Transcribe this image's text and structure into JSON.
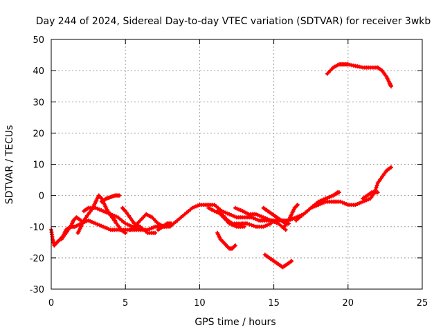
{
  "chart_data": {
    "type": "scatter",
    "title": "Day 244 of 2024, Sidereal Day-to-day VTEC variation (SDTVAR) for receiver 3wkb",
    "xlabel": "GPS time / hours",
    "ylabel": "SDTVAR / TECUs",
    "xlim": [
      0,
      25
    ],
    "ylim": [
      -30,
      50
    ],
    "xticks": [
      0,
      5,
      10,
      15,
      20,
      25
    ],
    "yticks": [
      -30,
      -20,
      -10,
      0,
      10,
      20,
      30,
      40,
      50
    ],
    "grid": true,
    "marker": "plus",
    "series": [
      {
        "name": "main-band",
        "color": "#ff0000",
        "points": [
          [
            0.0,
            -11
          ],
          [
            0.1,
            -14
          ],
          [
            0.2,
            -16
          ],
          [
            0.4,
            -15
          ],
          [
            0.6,
            -14
          ],
          [
            0.8,
            -13
          ],
          [
            1.0,
            -11
          ],
          [
            1.3,
            -10
          ],
          [
            1.6,
            -10
          ],
          [
            2.0,
            -9
          ],
          [
            2.5,
            -8
          ],
          [
            3.0,
            -9
          ],
          [
            3.5,
            -10
          ],
          [
            4.0,
            -11
          ],
          [
            4.5,
            -11
          ],
          [
            5.0,
            -11
          ],
          [
            5.5,
            -11
          ],
          [
            6.0,
            -11
          ],
          [
            6.5,
            -11
          ],
          [
            7.0,
            -10
          ],
          [
            7.5,
            -10
          ],
          [
            8.0,
            -10
          ],
          [
            8.5,
            -8
          ],
          [
            9.0,
            -6
          ],
          [
            9.5,
            -4
          ],
          [
            10.0,
            -3
          ],
          [
            10.5,
            -3
          ],
          [
            11.0,
            -3
          ],
          [
            11.5,
            -5
          ],
          [
            12.0,
            -6
          ],
          [
            12.5,
            -7
          ],
          [
            13.0,
            -7
          ],
          [
            13.5,
            -7
          ],
          [
            14.0,
            -8
          ],
          [
            14.5,
            -8
          ],
          [
            15.0,
            -8
          ],
          [
            15.5,
            -8
          ],
          [
            16.0,
            -8
          ],
          [
            16.5,
            -7
          ],
          [
            17.0,
            -6
          ],
          [
            17.5,
            -4
          ],
          [
            18.0,
            -3
          ],
          [
            18.5,
            -2
          ],
          [
            19.0,
            -2
          ],
          [
            19.5,
            -2
          ],
          [
            20.0,
            -3
          ],
          [
            20.5,
            -3
          ],
          [
            21.0,
            -2
          ],
          [
            21.5,
            -1
          ],
          [
            21.8,
            1
          ],
          [
            22.0,
            4
          ],
          [
            22.3,
            6
          ],
          [
            22.6,
            8
          ],
          [
            22.9,
            9
          ]
        ]
      },
      {
        "name": "branch-1",
        "color": "#ff0000",
        "points": [
          [
            0.7,
            -14
          ],
          [
            1.0,
            -12
          ],
          [
            1.3,
            -10
          ],
          [
            1.5,
            -8
          ],
          [
            1.7,
            -7
          ],
          [
            2.0,
            -8
          ]
        ]
      },
      {
        "name": "branch-2",
        "color": "#ff0000",
        "points": [
          [
            1.8,
            -12
          ],
          [
            2.0,
            -10
          ],
          [
            2.2,
            -8
          ],
          [
            2.5,
            -6
          ],
          [
            2.8,
            -4
          ],
          [
            3.0,
            -2
          ],
          [
            3.2,
            0
          ],
          [
            3.4,
            -1
          ],
          [
            3.6,
            -3
          ],
          [
            3.8,
            -5
          ],
          [
            4.0,
            -6
          ],
          [
            4.3,
            -8
          ]
        ]
      },
      {
        "name": "branch-3",
        "color": "#ff0000",
        "points": [
          [
            2.2,
            -5
          ],
          [
            2.5,
            -4
          ],
          [
            3.0,
            -4
          ],
          [
            3.5,
            -5
          ],
          [
            4.0,
            -6
          ],
          [
            4.5,
            -7
          ],
          [
            5.0,
            -9
          ],
          [
            5.5,
            -10
          ],
          [
            6.0,
            -11
          ]
        ]
      },
      {
        "name": "branch-4",
        "color": "#ff0000",
        "points": [
          [
            3.4,
            -2
          ],
          [
            3.7,
            -1
          ],
          [
            4.0,
            -0.5
          ],
          [
            4.3,
            0
          ],
          [
            4.6,
            0
          ]
        ]
      },
      {
        "name": "branch-5",
        "color": "#ff0000",
        "points": [
          [
            3.8,
            -5
          ],
          [
            4.1,
            -7
          ],
          [
            4.4,
            -9
          ],
          [
            4.7,
            -11
          ],
          [
            5.0,
            -12
          ]
        ]
      },
      {
        "name": "branch-6",
        "color": "#ff0000",
        "points": [
          [
            4.8,
            -4
          ],
          [
            5.0,
            -5
          ],
          [
            5.3,
            -7
          ],
          [
            5.6,
            -9
          ],
          [
            6.0,
            -10
          ],
          [
            6.5,
            -12
          ],
          [
            7.0,
            -12
          ]
        ]
      },
      {
        "name": "branch-7",
        "color": "#ff0000",
        "points": [
          [
            5.3,
            -11
          ],
          [
            5.6,
            -10
          ],
          [
            6.0,
            -8
          ],
          [
            6.4,
            -6
          ],
          [
            6.8,
            -7
          ],
          [
            7.2,
            -9
          ],
          [
            7.6,
            -10
          ]
        ]
      },
      {
        "name": "branch-8",
        "color": "#ff0000",
        "points": [
          [
            7.2,
            -11
          ],
          [
            7.5,
            -10
          ],
          [
            7.8,
            -9
          ],
          [
            8.1,
            -9
          ]
        ]
      },
      {
        "name": "branch-9",
        "color": "#ff0000",
        "points": [
          [
            10.6,
            -4
          ],
          [
            11.0,
            -5
          ],
          [
            11.5,
            -6
          ],
          [
            11.9,
            -8
          ],
          [
            12.2,
            -9
          ],
          [
            12.8,
            -9
          ],
          [
            13.2,
            -9
          ],
          [
            13.8,
            -10
          ],
          [
            14.3,
            -10
          ],
          [
            14.8,
            -9
          ]
        ]
      },
      {
        "name": "branch-10",
        "color": "#ff0000",
        "points": [
          [
            11.2,
            -5
          ],
          [
            11.6,
            -7
          ],
          [
            12.0,
            -9
          ],
          [
            12.5,
            -10
          ],
          [
            13.0,
            -10
          ]
        ]
      },
      {
        "name": "branch-11",
        "color": "#ff0000",
        "points": [
          [
            12.4,
            -4
          ],
          [
            12.9,
            -5
          ],
          [
            13.3,
            -6
          ],
          [
            13.8,
            -6
          ],
          [
            14.3,
            -7
          ],
          [
            14.8,
            -8
          ],
          [
            15.3,
            -9
          ],
          [
            15.8,
            -11
          ]
        ]
      },
      {
        "name": "branch-12",
        "color": "#ff0000",
        "points": [
          [
            14.3,
            -4
          ],
          [
            14.6,
            -5
          ],
          [
            14.9,
            -6
          ],
          [
            15.2,
            -7
          ],
          [
            15.5,
            -8
          ],
          [
            15.8,
            -9
          ],
          [
            16.0,
            -9
          ]
        ]
      },
      {
        "name": "branch-13",
        "color": "#ff0000",
        "points": [
          [
            15.7,
            -10
          ],
          [
            16.0,
            -8
          ],
          [
            16.2,
            -6
          ],
          [
            16.4,
            -4
          ],
          [
            16.6,
            -3
          ]
        ]
      },
      {
        "name": "branch-14",
        "color": "#ff0000",
        "points": [
          [
            16.5,
            -8
          ],
          [
            17.0,
            -6
          ],
          [
            17.5,
            -4
          ],
          [
            18.0,
            -2
          ],
          [
            18.5,
            -1
          ],
          [
            19.0,
            0
          ],
          [
            19.3,
            1
          ]
        ]
      },
      {
        "name": "branch-15",
        "color": "#ff0000",
        "points": [
          [
            18.0,
            -3
          ],
          [
            18.5,
            -1
          ],
          [
            19.0,
            0
          ],
          [
            19.4,
            1
          ]
        ]
      },
      {
        "name": "branch-16",
        "color": "#ff0000",
        "points": [
          [
            21.0,
            -1
          ],
          [
            21.3,
            0
          ],
          [
            21.6,
            1
          ],
          [
            22.0,
            1
          ]
        ]
      },
      {
        "name": "isolated-a",
        "color": "#ff0000",
        "points": [
          [
            11.2,
            -12
          ],
          [
            11.4,
            -14
          ],
          [
            11.6,
            -15
          ],
          [
            11.8,
            -16
          ],
          [
            12.0,
            -17
          ],
          [
            12.2,
            -17
          ],
          [
            12.4,
            -16
          ]
        ]
      },
      {
        "name": "isolated-b",
        "color": "#ff0000",
        "points": [
          [
            14.4,
            -19
          ],
          [
            14.7,
            -20
          ],
          [
            15.0,
            -21
          ],
          [
            15.3,
            -22
          ],
          [
            15.6,
            -23
          ],
          [
            15.9,
            -22
          ],
          [
            16.2,
            -21
          ]
        ]
      },
      {
        "name": "isolated-c",
        "color": "#ff0000",
        "points": [
          [
            18.6,
            39
          ],
          [
            19.0,
            41
          ],
          [
            19.4,
            42
          ],
          [
            19.7,
            42
          ],
          [
            20.0,
            42
          ],
          [
            20.5,
            41.5
          ],
          [
            21.0,
            41
          ],
          [
            21.5,
            41
          ],
          [
            22.0,
            41
          ],
          [
            22.3,
            40
          ],
          [
            22.6,
            38
          ],
          [
            22.8,
            36
          ],
          [
            22.9,
            35
          ]
        ]
      }
    ]
  }
}
